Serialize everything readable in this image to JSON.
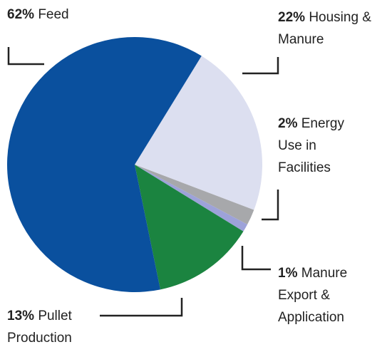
{
  "chart_data": {
    "type": "pie",
    "categories": [
      "Housing & Manure",
      "Energy Use in Facilities",
      "Manure Export & Application",
      "Pullet Production",
      "Feed"
    ],
    "values": [
      22,
      2,
      1,
      13,
      62
    ],
    "value_labels": [
      "22%",
      "2%",
      "1%",
      "13%",
      "62%"
    ],
    "colors": [
      "#dcdff0",
      "#a7a8ab",
      "#9da2d9",
      "#1b8440",
      "#0a509e"
    ]
  }
}
